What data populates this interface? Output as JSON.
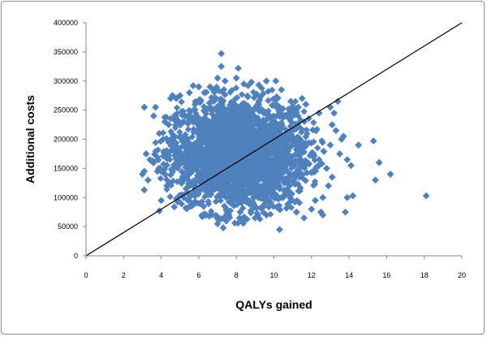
{
  "chart_data": {
    "type": "scatter",
    "title": "",
    "xlabel": "QALYs gained",
    "ylabel": "Additional costs",
    "xlim": [
      0,
      20
    ],
    "ylim": [
      0,
      400000
    ],
    "xticks": [
      0,
      2,
      4,
      6,
      8,
      10,
      12,
      14,
      16,
      18,
      20
    ],
    "yticks": [
      0,
      50000,
      100000,
      150000,
      200000,
      250000,
      300000,
      350000,
      400000
    ],
    "grid": false,
    "legend": "none",
    "marker_color": "#4F81BD",
    "marker": "diamond",
    "cloud": {
      "description_visible": false,
      "x_center": 8.1,
      "y_center": 175000,
      "x_sd": 1.9,
      "y_sd": 50000,
      "x_range": [
        4,
        13.2
      ],
      "y_range": [
        60000,
        300000
      ]
    },
    "series": [
      {
        "values_points": [
          [
            3.1,
            255000
          ],
          [
            3.1,
            145000
          ],
          [
            3.0,
            140000
          ],
          [
            3.1,
            113000
          ],
          [
            3.3,
            130000
          ],
          [
            3.2,
            175000
          ],
          [
            3.4,
            165000
          ],
          [
            3.6,
            160000
          ],
          [
            3.8,
            145000
          ],
          [
            3.6,
            240000
          ],
          [
            3.7,
            255000
          ],
          [
            3.9,
            210000
          ],
          [
            4.0,
            95000
          ],
          [
            3.9,
            77000
          ],
          [
            4.3,
            120000
          ],
          [
            4.5,
            270000
          ],
          [
            4.6,
            275000
          ],
          [
            4.8,
            270000
          ],
          [
            5.0,
            275000
          ],
          [
            5.5,
            280000
          ],
          [
            5.7,
            292000
          ],
          [
            6.0,
            290000
          ],
          [
            6.3,
            280000
          ],
          [
            6.6,
            290000
          ],
          [
            6.9,
            285000
          ],
          [
            7.2,
            347000
          ],
          [
            7.2,
            325000
          ],
          [
            7.0,
            305000
          ],
          [
            7.4,
            300000
          ],
          [
            8.1,
            322000
          ],
          [
            8.0,
            305000
          ],
          [
            8.4,
            295000
          ],
          [
            8.8,
            298000
          ],
          [
            9.2,
            293000
          ],
          [
            9.6,
            300000
          ],
          [
            10.1,
            300000
          ],
          [
            10.4,
            285000
          ],
          [
            10.9,
            265000
          ],
          [
            11.3,
            255000
          ],
          [
            11.5,
            270000
          ],
          [
            11.7,
            260000
          ],
          [
            12.4,
            245000
          ],
          [
            13.0,
            255000
          ],
          [
            13.2,
            245000
          ],
          [
            13.4,
            265000
          ],
          [
            13.1,
            225000
          ],
          [
            13.3,
            215000
          ],
          [
            13.7,
            205000
          ],
          [
            13.6,
            200000
          ],
          [
            13.0,
            190000
          ],
          [
            13.5,
            175000
          ],
          [
            13.9,
            165000
          ],
          [
            14.1,
            155000
          ],
          [
            14.5,
            190000
          ],
          [
            15.3,
            197000
          ],
          [
            15.6,
            160000
          ],
          [
            15.4,
            130000
          ],
          [
            16.2,
            140000
          ],
          [
            14.2,
            103000
          ],
          [
            13.9,
            100000
          ],
          [
            13.8,
            75000
          ],
          [
            18.1,
            103000
          ],
          [
            12.5,
            75000
          ],
          [
            12.6,
            70000
          ],
          [
            12.0,
            80000
          ],
          [
            11.6,
            65000
          ],
          [
            11.2,
            75000
          ],
          [
            10.3,
            45000
          ],
          [
            9.6,
            70000
          ],
          [
            9.0,
            65000
          ],
          [
            8.2,
            75000
          ],
          [
            7.6,
            70000
          ],
          [
            7.3,
            48000
          ],
          [
            7.0,
            55000
          ],
          [
            6.7,
            70000
          ],
          [
            6.3,
            72000
          ],
          [
            5.6,
            85000
          ],
          [
            5.2,
            100000
          ],
          [
            4.7,
            84000
          ],
          [
            4.9,
            95000
          ],
          [
            12.9,
            120000
          ],
          [
            13.1,
            135000
          ],
          [
            12.8,
            150000
          ],
          [
            12.6,
            100000
          ],
          [
            12.2,
            95000
          ],
          [
            4.2,
            230000
          ],
          [
            4.4,
            225000
          ],
          [
            4.1,
            200000
          ],
          [
            4.3,
            180000
          ],
          [
            4.2,
            140000
          ]
        ]
      }
    ],
    "reference_line": {
      "from": [
        0,
        0
      ],
      "to": [
        20,
        400000
      ],
      "color": "#000000"
    }
  }
}
